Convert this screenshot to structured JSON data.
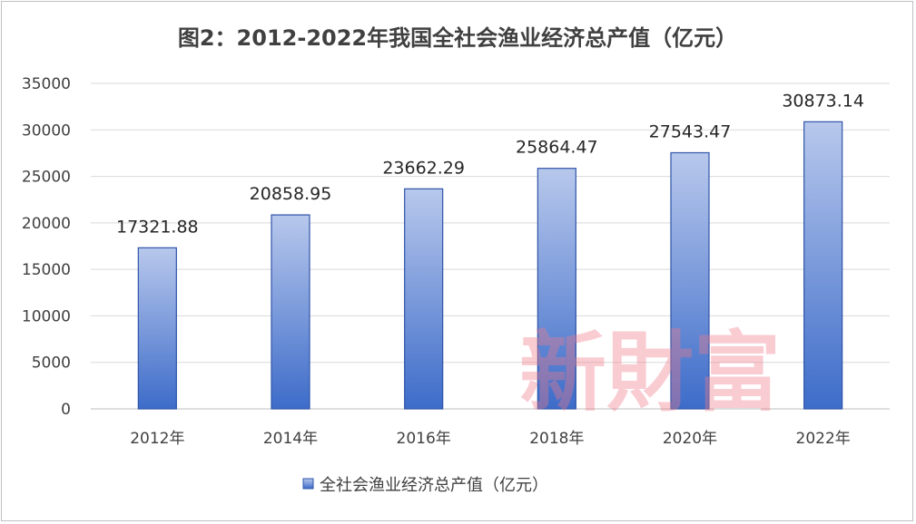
{
  "chart_data": {
    "type": "bar",
    "title": "图2：2012-2022年我国全社会渔业经济总产值（亿元）",
    "categories": [
      "2012年",
      "2014年",
      "2016年",
      "2018年",
      "2020年",
      "2022年"
    ],
    "series": [
      {
        "name": "全社会渔业经济总产值（亿元）",
        "values": [
          17321.88,
          20858.95,
          23662.29,
          25864.47,
          27543.47,
          30873.14
        ]
      }
    ],
    "data_labels": [
      "17321.88",
      "20858.95",
      "23662.29",
      "25864.47",
      "27543.47",
      "30873.14"
    ],
    "yticks": [
      "0",
      "5000",
      "10000",
      "15000",
      "20000",
      "25000",
      "30000",
      "35000"
    ],
    "ylim": [
      0,
      35000
    ],
    "grid": "horizontal",
    "legend_position": "bottom",
    "colors": {
      "bar_top": "#b8c8ec",
      "bar_bottom": "#3d6cc9",
      "bar_border": "#2f54a8",
      "grid": "#d9d9d9",
      "text": "#404040"
    },
    "watermark": "新財富"
  }
}
